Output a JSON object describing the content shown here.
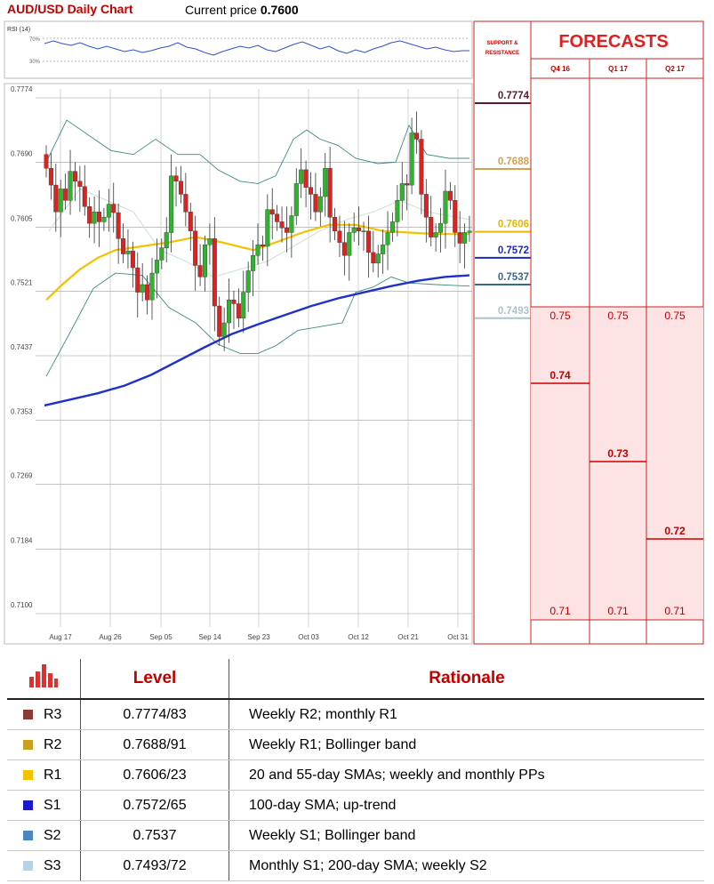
{
  "header": {
    "title": "AUD/USD Daily Chart",
    "price_label": "Current price",
    "price_value": "0.7600"
  },
  "rsi": {
    "label": "RSI (14)",
    "ticks": [
      "70%",
      "30%"
    ]
  },
  "chart_data": {
    "type": "candlestick",
    "ylim": [
      0.71,
      0.78
    ],
    "y_ticks": [
      "0.7774",
      "0.7690",
      "0.7605",
      "0.7521",
      "0.7437",
      "0.7353",
      "0.7269",
      "0.7184",
      "0.7100"
    ],
    "x_ticks": [
      "Aug 17",
      "Aug 26",
      "Sep 05",
      "Sep 14",
      "Sep 23",
      "Oct 03",
      "Oct 12",
      "Oct 21",
      "Oct 31"
    ],
    "colors": {
      "up": "#2db52d",
      "down": "#dd2222",
      "sma20": "#c8e0d0",
      "sma55": "#f2c200",
      "sma100": "#2130cc",
      "bollinger": "#3e8a88"
    }
  },
  "support_resistance": {
    "title_line1": "SUPPORT &",
    "title_line2": "RESISTANCE",
    "levels": [
      {
        "value": "0.7774",
        "color": "#5a1a2e"
      },
      {
        "value": "0.7688",
        "color": "#d4a24a"
      },
      {
        "value": "0.7606",
        "color": "#e8b800"
      },
      {
        "value": "0.7572",
        "color": "#1a2bbf"
      },
      {
        "value": "0.7537",
        "color": "#3a6a8a"
      },
      {
        "value": "0.7493",
        "color": "#a8c4cc"
      }
    ]
  },
  "forecasts": {
    "title": "FORECASTS",
    "columns": [
      {
        "label": "Q4 16",
        "top": "0.75",
        "forecast": "0.74",
        "bottom": "0.71"
      },
      {
        "label": "Q1 17",
        "top": "0.75",
        "forecast": "0.73",
        "bottom": "0.71"
      },
      {
        "label": "Q2 17",
        "top": "0.75",
        "forecast": "0.72",
        "bottom": "0.71"
      }
    ]
  },
  "table": {
    "headers": {
      "level": "Level",
      "rationale": "Rationale"
    },
    "rows": [
      {
        "code": "R3",
        "color": "#8b3a3a",
        "level": "0.7774/83",
        "rationale": "Weekly R2; monthly R1"
      },
      {
        "code": "R2",
        "color": "#c8a020",
        "level": "0.7688/91",
        "rationale": "Weekly R1; Bollinger band"
      },
      {
        "code": "R1",
        "color": "#f2c200",
        "level": "0.7606/23",
        "rationale": "20 and 55-day SMAs; weekly and monthly PPs"
      },
      {
        "code": "S1",
        "color": "#1a1acc",
        "level": "0.7572/65",
        "rationale": "100-day SMA; up-trend"
      },
      {
        "code": "S2",
        "color": "#4a86c0",
        "level": "0.7537",
        "rationale": "Weekly S1; Bollinger band"
      },
      {
        "code": "S3",
        "color": "#b8d4e4",
        "level": "0.7493/72",
        "rationale": "Monthly S1; 200-day SMA; weekly S2"
      }
    ]
  }
}
